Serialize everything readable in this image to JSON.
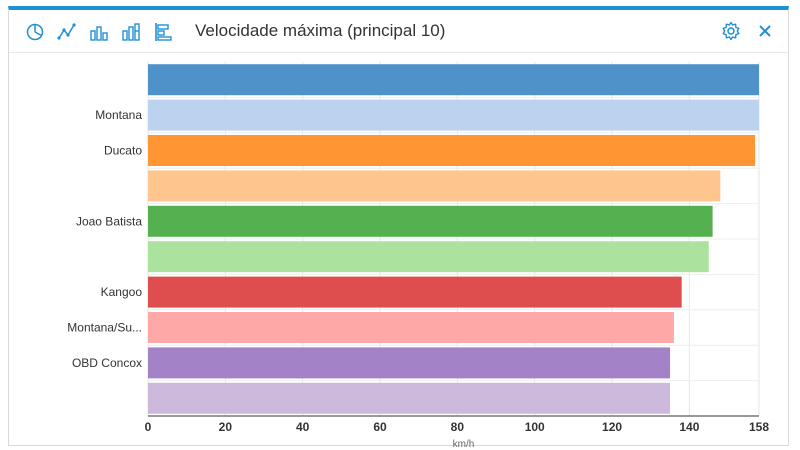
{
  "toolbar": {
    "icons": [
      "pie-chart-icon",
      "line-chart-icon",
      "column-chart-icon",
      "stacked-column-chart-icon",
      "bar-chart-icon"
    ],
    "title": "Velocidade máxima (principal 10)",
    "settings_icon": "gear-icon",
    "close_label": "×"
  },
  "colors": {
    "accent": "#1e90d6",
    "series": [
      "#4f92c9",
      "#bdd2ee",
      "#ff9633",
      "#ffc58f",
      "#55b04f",
      "#abe29e",
      "#de4e4e",
      "#ffa8a8",
      "#a482c8",
      "#ccb9dc"
    ]
  },
  "chart_data": {
    "type": "bar",
    "orientation": "horizontal",
    "title": "Velocidade máxima (principal 10)",
    "categories": [
      "",
      "Montana",
      "Ducato",
      "",
      "Joao Batista",
      "",
      "Kangoo",
      "Montana/Su...",
      "OBD Concox",
      ""
    ],
    "values": [
      158,
      158,
      157,
      148,
      146,
      145,
      138,
      136,
      135,
      135
    ],
    "xlim": [
      0,
      158
    ],
    "xticks": [
      0,
      20,
      40,
      60,
      80,
      100,
      120,
      140,
      158
    ],
    "xlabel": "km/h",
    "grid": true
  }
}
